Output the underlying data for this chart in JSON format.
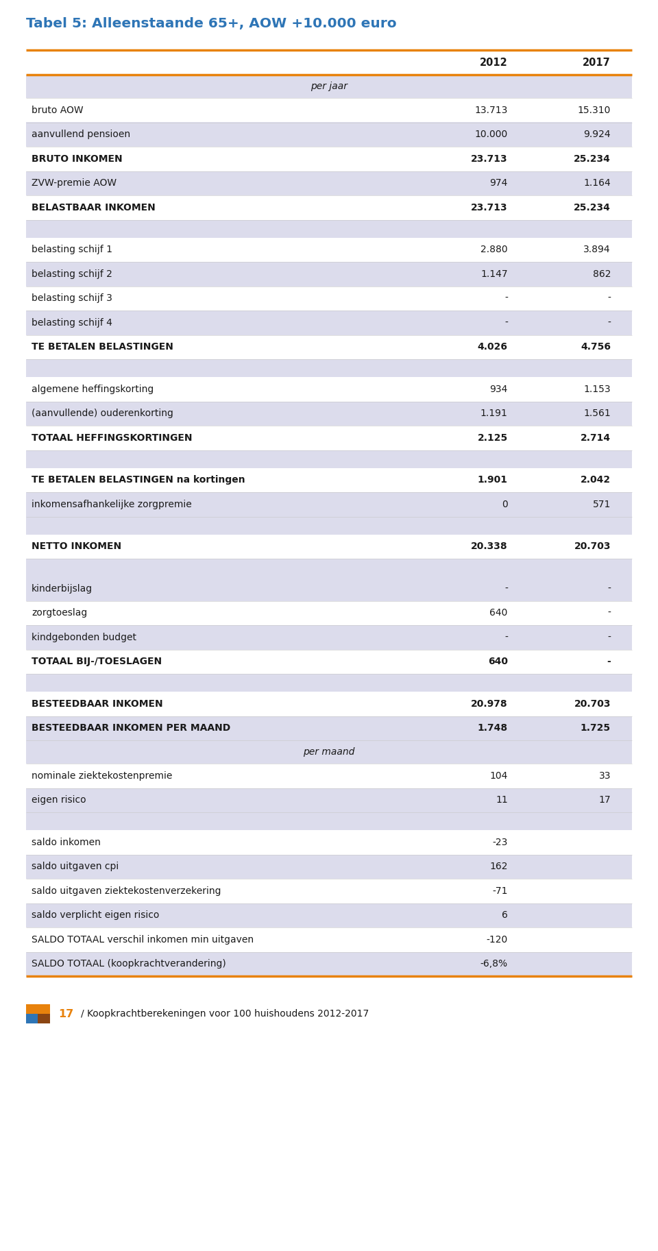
{
  "title": "Tabel 5: Alleenstaande 65+, AOW +10.000 euro",
  "title_color": "#2E75B6",
  "footer_text": "/ Koopkrachtberekeningen voor 100 huishoudens 2012-2017",
  "rows": [
    {
      "label": "per jaar",
      "val2012": "",
      "val2017": "",
      "type": "section_header",
      "bold": false,
      "italic": true
    },
    {
      "label": "bruto AOW",
      "val2012": "13.713",
      "val2017": "15.310",
      "type": "normal",
      "bold": false
    },
    {
      "label": "aanvullend pensioen",
      "val2012": "10.000",
      "val2017": "9.924",
      "type": "shaded",
      "bold": false
    },
    {
      "label": "BRUTO INKOMEN",
      "val2012": "23.713",
      "val2017": "25.234",
      "type": "normal",
      "bold": true
    },
    {
      "label": "ZVW-premie AOW",
      "val2012": "974",
      "val2017": "1.164",
      "type": "shaded",
      "bold": false
    },
    {
      "label": "BELASTBAAR INKOMEN",
      "val2012": "23.713",
      "val2017": "25.234",
      "type": "normal",
      "bold": true
    },
    {
      "label": "",
      "val2012": "",
      "val2017": "",
      "type": "spacer",
      "bold": false
    },
    {
      "label": "belasting schijf 1",
      "val2012": "2.880",
      "val2017": "3.894",
      "type": "normal",
      "bold": false
    },
    {
      "label": "belasting schijf 2",
      "val2012": "1.147",
      "val2017": "862",
      "type": "shaded",
      "bold": false
    },
    {
      "label": "belasting schijf 3",
      "val2012": "-",
      "val2017": "-",
      "type": "normal",
      "bold": false
    },
    {
      "label": "belasting schijf 4",
      "val2012": "-",
      "val2017": "-",
      "type": "shaded",
      "bold": false
    },
    {
      "label": "TE BETALEN BELASTINGEN",
      "val2012": "4.026",
      "val2017": "4.756",
      "type": "normal",
      "bold": true
    },
    {
      "label": "",
      "val2012": "",
      "val2017": "",
      "type": "spacer",
      "bold": false
    },
    {
      "label": "algemene heffingskorting",
      "val2012": "934",
      "val2017": "1.153",
      "type": "normal",
      "bold": false
    },
    {
      "label": "(aanvullende) ouderenkorting",
      "val2012": "1.191",
      "val2017": "1.561",
      "type": "shaded",
      "bold": false
    },
    {
      "label": "TOTAAL HEFFINGSKORTINGEN",
      "val2012": "2.125",
      "val2017": "2.714",
      "type": "normal",
      "bold": true
    },
    {
      "label": "",
      "val2012": "",
      "val2017": "",
      "type": "spacer",
      "bold": false
    },
    {
      "label": "TE BETALEN BELASTINGEN na kortingen",
      "val2012": "1.901",
      "val2017": "2.042",
      "type": "normal",
      "bold": true
    },
    {
      "label": "inkomensafhankelijke zorgpremie",
      "val2012": "0",
      "val2017": "571",
      "type": "shaded",
      "bold": false
    },
    {
      "label": "",
      "val2012": "",
      "val2017": "",
      "type": "spacer",
      "bold": false
    },
    {
      "label": "NETTO INKOMEN",
      "val2012": "20.338",
      "val2017": "20.703",
      "type": "normal",
      "bold": true
    },
    {
      "label": "",
      "val2012": "",
      "val2017": "",
      "type": "spacer",
      "bold": false
    },
    {
      "label": "kinderbijslag",
      "val2012": "-",
      "val2017": "-",
      "type": "shaded",
      "bold": false
    },
    {
      "label": "zorgtoeslag",
      "val2012": "640",
      "val2017": "-",
      "type": "normal",
      "bold": false
    },
    {
      "label": "kindgebonden budget",
      "val2012": "-",
      "val2017": "-",
      "type": "shaded",
      "bold": false
    },
    {
      "label": "TOTAAL BIJ-/TOESLAGEN",
      "val2012": "640",
      "val2017": "-",
      "type": "normal",
      "bold": true
    },
    {
      "label": "",
      "val2012": "",
      "val2017": "",
      "type": "spacer",
      "bold": false
    },
    {
      "label": "BESTEEDBAAR INKOMEN",
      "val2012": "20.978",
      "val2017": "20.703",
      "type": "normal",
      "bold": true
    },
    {
      "label": "BESTEEDBAAR INKOMEN PER MAAND",
      "val2012": "1.748",
      "val2017": "1.725",
      "type": "shaded",
      "bold": true
    },
    {
      "label": "per maand",
      "val2012": "",
      "val2017": "",
      "type": "section_header",
      "bold": false,
      "italic": true
    },
    {
      "label": "nominale ziektekostenpremie",
      "val2012": "104",
      "val2017": "33",
      "type": "normal",
      "bold": false
    },
    {
      "label": "eigen risico",
      "val2012": "11",
      "val2017": "17",
      "type": "shaded",
      "bold": false
    },
    {
      "label": "",
      "val2012": "",
      "val2017": "",
      "type": "spacer",
      "bold": false
    },
    {
      "label": "saldo inkomen",
      "val2012": "-23",
      "val2017": "",
      "type": "normal",
      "bold": false
    },
    {
      "label": "saldo uitgaven cpi",
      "val2012": "162",
      "val2017": "",
      "type": "shaded",
      "bold": false
    },
    {
      "label": "saldo uitgaven ziektekostenverzekering",
      "val2012": "-71",
      "val2017": "",
      "type": "normal",
      "bold": false
    },
    {
      "label": "saldo verplicht eigen risico",
      "val2012": "6",
      "val2017": "",
      "type": "shaded",
      "bold": false
    },
    {
      "label": "SALDO TOTAAL verschil inkomen min uitgaven",
      "val2012": "-120",
      "val2017": "",
      "type": "normal",
      "bold": false
    },
    {
      "label": "SALDO TOTAAL (koopkrachtverandering)",
      "val2012": "-6,8%",
      "val2017": "",
      "type": "shaded",
      "bold": false
    }
  ],
  "orange_color": "#E8820C",
  "shaded_color": "#DCDCEC",
  "white_color": "#FFFFFF",
  "text_color": "#1A1A1A"
}
